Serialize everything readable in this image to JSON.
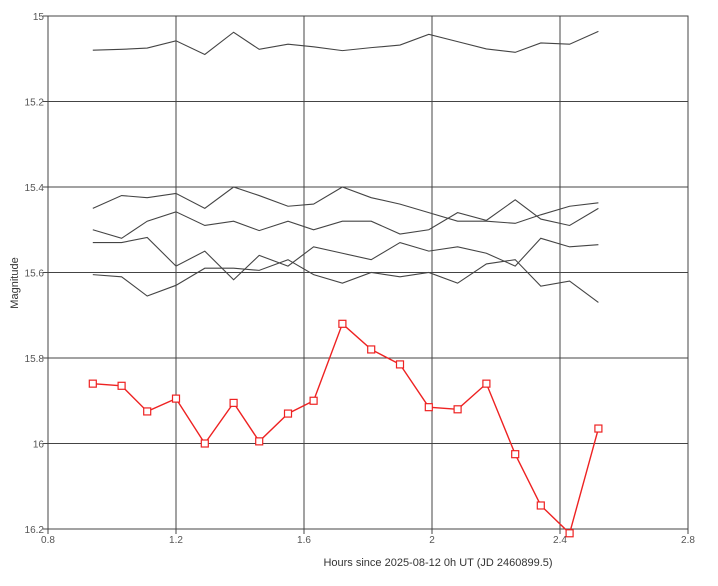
{
  "chart_data": {
    "type": "line",
    "xlabel": "Hours since 2025-08-12 0h UT (JD 2460899.5)",
    "ylabel": "Magnitude",
    "xlim": [
      0.8,
      2.8
    ],
    "ylim": [
      16.2,
      15.0
    ],
    "y_inverted": true,
    "grid": true,
    "x_ticks": [
      "0.8",
      "1.2",
      "1.6",
      "2",
      "2.4",
      "2.8"
    ],
    "x_tick_values": [
      0.8,
      1.2,
      1.6,
      2.0,
      2.4,
      2.8
    ],
    "y_ticks": [
      "15",
      "15.2",
      "15.4",
      "15.6",
      "15.8",
      "16",
      "16.2"
    ],
    "y_tick_values": [
      15.0,
      15.2,
      15.4,
      15.6,
      15.8,
      16.0,
      16.2
    ],
    "x": [
      0.94,
      1.03,
      1.11,
      1.2,
      1.29,
      1.38,
      1.46,
      1.55,
      1.63,
      1.72,
      1.81,
      1.9,
      1.99,
      2.08,
      2.17,
      2.26,
      2.34,
      2.43,
      2.52
    ],
    "series": [
      {
        "color": "#ee2222",
        "marker": "square",
        "values": [
          15.86,
          15.865,
          15.925,
          15.895,
          16.0,
          15.905,
          15.995,
          15.93,
          15.9,
          15.72,
          15.78,
          15.815,
          15.915,
          15.92,
          15.86,
          16.025,
          16.145,
          16.21,
          15.965
        ]
      },
      {
        "color": "#444444",
        "values": [
          15.08,
          15.078,
          15.075,
          15.058,
          15.09,
          15.038,
          15.078,
          15.066,
          15.072,
          15.081,
          15.074,
          15.068,
          15.043,
          15.06,
          15.077,
          15.085,
          15.063,
          15.066,
          15.036
        ]
      },
      {
        "color": "#444444",
        "values": [
          15.45,
          15.42,
          15.425,
          15.415,
          15.45,
          15.4,
          15.42,
          15.445,
          15.44,
          15.4,
          15.425,
          15.44,
          15.46,
          15.48,
          15.48,
          15.485,
          15.465,
          15.445,
          15.437
        ]
      },
      {
        "color": "#444444",
        "values": [
          15.5,
          15.52,
          15.48,
          15.458,
          15.49,
          15.48,
          15.502,
          15.48,
          15.5,
          15.48,
          15.48,
          15.51,
          15.5,
          15.46,
          15.478,
          15.43,
          15.475,
          15.49,
          15.45
        ]
      },
      {
        "color": "#444444",
        "values": [
          15.53,
          15.53,
          15.518,
          15.585,
          15.55,
          15.617,
          15.56,
          15.585,
          15.54,
          15.555,
          15.57,
          15.53,
          15.55,
          15.54,
          15.555,
          15.585,
          15.52,
          15.54,
          15.535
        ]
      },
      {
        "color": "#444444",
        "values": [
          15.605,
          15.61,
          15.655,
          15.63,
          15.59,
          15.59,
          15.595,
          15.57,
          15.605,
          15.625,
          15.6,
          15.61,
          15.6,
          15.625,
          15.58,
          15.57,
          15.632,
          15.62,
          15.67
        ]
      }
    ]
  }
}
